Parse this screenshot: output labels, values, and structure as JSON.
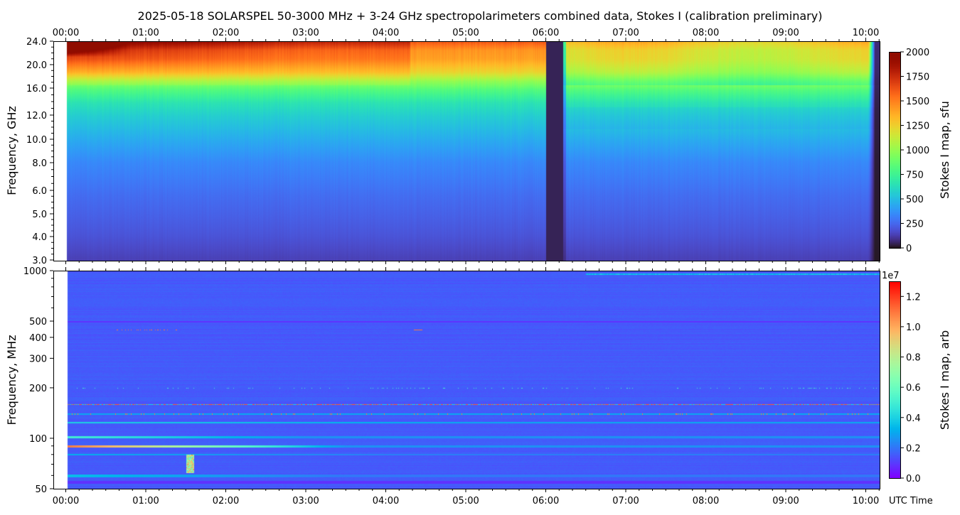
{
  "chart_data": [
    {
      "type": "heatmap",
      "title": "2025-05-18  SOLARSPEL  50-3000 MHz  +  3-24 GHz  spectropolarimeters combined data,  Stokes I  (calibration preliminary)",
      "panel": "top",
      "colormap": "turbo",
      "xlabel": "",
      "ylabel": "Frequency, GHz",
      "x_tick_labels": [
        "00:00",
        "01:00",
        "02:00",
        "03:00",
        "04:00",
        "05:00",
        "06:00",
        "07:00",
        "08:00",
        "09:00",
        "10:00"
      ],
      "y_tick_labels": [
        "24.0",
        "20.0",
        "16.0",
        "12.0",
        "10.0",
        "8.0",
        "6.0",
        "5.0",
        "4.0",
        "3.0"
      ],
      "ylim": [
        3.0,
        24.0
      ],
      "xlim": [
        "00:00",
        "10:12"
      ],
      "colorbar": {
        "label": "Stokes I map, sfu",
        "range": [
          0,
          2000
        ],
        "tick_labels": [
          "0",
          "250",
          "500",
          "750",
          "1000",
          "1250",
          "1500",
          "1750",
          "2000"
        ]
      },
      "data_gap": [
        "06:00",
        "06:12"
      ],
      "features": "intensity rising with frequency: ~150 sfu at 3 GHz, ~450 sfu at 10 GHz, ~850 sfu at 16 GHz, ~1500-1900 sfu at 20-24 GHz; top band slightly weaker after 06:12"
    },
    {
      "type": "heatmap",
      "panel": "bottom",
      "colormap": "rainbow",
      "xlabel": "UTC Time",
      "ylabel": "Frequency, MHz",
      "yscale": "log",
      "x_tick_labels": [
        "00:00",
        "01:00",
        "02:00",
        "03:00",
        "04:00",
        "05:00",
        "06:00",
        "07:00",
        "08:00",
        "09:00",
        "10:00"
      ],
      "y_tick_labels": [
        "1000",
        "500",
        "400",
        "300",
        "200",
        "100",
        "50"
      ],
      "ylim": [
        50,
        1000
      ],
      "xlim": [
        "00:00",
        "10:12"
      ],
      "colorbar": {
        "label": "Stokes I map, arb",
        "range": [
          0,
          13000000.0
        ],
        "offset_label": "1e7",
        "tick_labels": [
          "0.0",
          "0.2",
          "0.4",
          "0.6",
          "0.8",
          "1.0",
          "1.2"
        ]
      },
      "features": "background ~0.15e7; persistent interference at ~160 MHz (~1.2e7) and ~140 MHz; strong band ~90 MHz before 03:00; burst near 70 MHz at 01:32"
    }
  ]
}
